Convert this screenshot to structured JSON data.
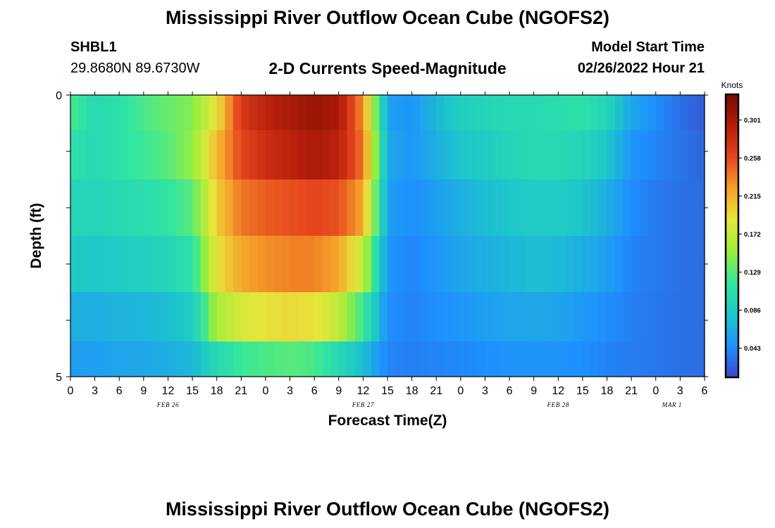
{
  "header": {
    "title": "Mississippi River Outflow Ocean Cube (NGOFS2)",
    "station": "SHBL1",
    "coords": "29.8680N  89.6730W",
    "subtitle": "2-D Currents Speed-Magnitude",
    "model_start_label": "Model Start Time",
    "model_start_time": "02/26/2022 Hour 21"
  },
  "footer": {
    "title_repeat": "Mississippi River Outflow Ocean Cube (NGOFS2)"
  },
  "chart_data": {
    "type": "heatmap",
    "xlabel": "Forecast Time(Z)",
    "ylabel": "Depth (ft)",
    "ylim": [
      0,
      5
    ],
    "y_ticks": [
      "0",
      "5"
    ],
    "x_range_hours": [
      0,
      78
    ],
    "x_ticks": [
      "0",
      "3",
      "6",
      "9",
      "12",
      "15",
      "18",
      "21",
      "0",
      "3",
      "6",
      "9",
      "12",
      "15",
      "18",
      "21",
      "0",
      "3",
      "6",
      "9",
      "12",
      "15",
      "18",
      "21",
      "0",
      "3",
      "6"
    ],
    "date_labels": [
      {
        "label": "FEB 26",
        "hour": 12
      },
      {
        "label": "FEB 27",
        "hour": 36
      },
      {
        "label": "FEB 28",
        "hour": 60
      },
      {
        "label": "MAR 1",
        "hour": 74
      }
    ],
    "colorbar": {
      "unit": "Knots",
      "min": 0.01,
      "max": 0.33,
      "ticks": [
        "0.301",
        "0.258",
        "0.215",
        "0.172",
        "0.129",
        "0.086",
        "0.043"
      ],
      "tick_values": [
        0.301,
        0.258,
        0.215,
        0.172,
        0.129,
        0.086,
        0.043
      ],
      "colors": [
        "#3b47c8",
        "#1e90ff",
        "#1ec8c8",
        "#32e6a0",
        "#9aee3c",
        "#e6e63c",
        "#f5a02a",
        "#e6461e",
        "#b41e0a",
        "#780a00"
      ]
    },
    "depth_layers": [
      0.25,
      1.0,
      2.0,
      3.0,
      4.0,
      4.75
    ],
    "hours": [
      0,
      3,
      6,
      9,
      12,
      15,
      18,
      21,
      24,
      27,
      30,
      33,
      36,
      39,
      42,
      45,
      48,
      51,
      54,
      57,
      60,
      63,
      66,
      69,
      72,
      75,
      78
    ],
    "speed_knots": [
      [
        0.125,
        0.1,
        0.11,
        0.125,
        0.135,
        0.145,
        0.19,
        0.27,
        0.29,
        0.3,
        0.31,
        0.3,
        0.23,
        0.055,
        0.05,
        0.07,
        0.09,
        0.095,
        0.1,
        0.1,
        0.105,
        0.11,
        0.095,
        0.06,
        0.045,
        0.03,
        0.02
      ],
      [
        0.11,
        0.1,
        0.11,
        0.12,
        0.13,
        0.15,
        0.21,
        0.26,
        0.28,
        0.29,
        0.3,
        0.29,
        0.24,
        0.06,
        0.05,
        0.065,
        0.08,
        0.085,
        0.095,
        0.1,
        0.1,
        0.095,
        0.08,
        0.05,
        0.04,
        0.032,
        0.025
      ],
      [
        0.095,
        0.095,
        0.1,
        0.105,
        0.115,
        0.13,
        0.2,
        0.24,
        0.25,
        0.255,
        0.26,
        0.255,
        0.22,
        0.055,
        0.045,
        0.055,
        0.065,
        0.075,
        0.08,
        0.085,
        0.085,
        0.08,
        0.065,
        0.045,
        0.035,
        0.03,
        0.028
      ],
      [
        0.085,
        0.08,
        0.085,
        0.09,
        0.095,
        0.11,
        0.19,
        0.22,
        0.23,
        0.235,
        0.235,
        0.22,
        0.17,
        0.05,
        0.04,
        0.05,
        0.06,
        0.065,
        0.07,
        0.075,
        0.072,
        0.065,
        0.055,
        0.04,
        0.035,
        0.03,
        0.028
      ],
      [
        0.065,
        0.065,
        0.068,
        0.07,
        0.075,
        0.085,
        0.16,
        0.18,
        0.19,
        0.195,
        0.19,
        0.17,
        0.12,
        0.045,
        0.04,
        0.045,
        0.05,
        0.055,
        0.058,
        0.06,
        0.058,
        0.052,
        0.045,
        0.038,
        0.034,
        0.03,
        0.028
      ],
      [
        0.055,
        0.055,
        0.058,
        0.06,
        0.065,
        0.07,
        0.1,
        0.12,
        0.125,
        0.13,
        0.125,
        0.1,
        0.075,
        0.04,
        0.038,
        0.04,
        0.042,
        0.045,
        0.048,
        0.05,
        0.048,
        0.045,
        0.04,
        0.036,
        0.034,
        0.03,
        0.028
      ]
    ]
  }
}
